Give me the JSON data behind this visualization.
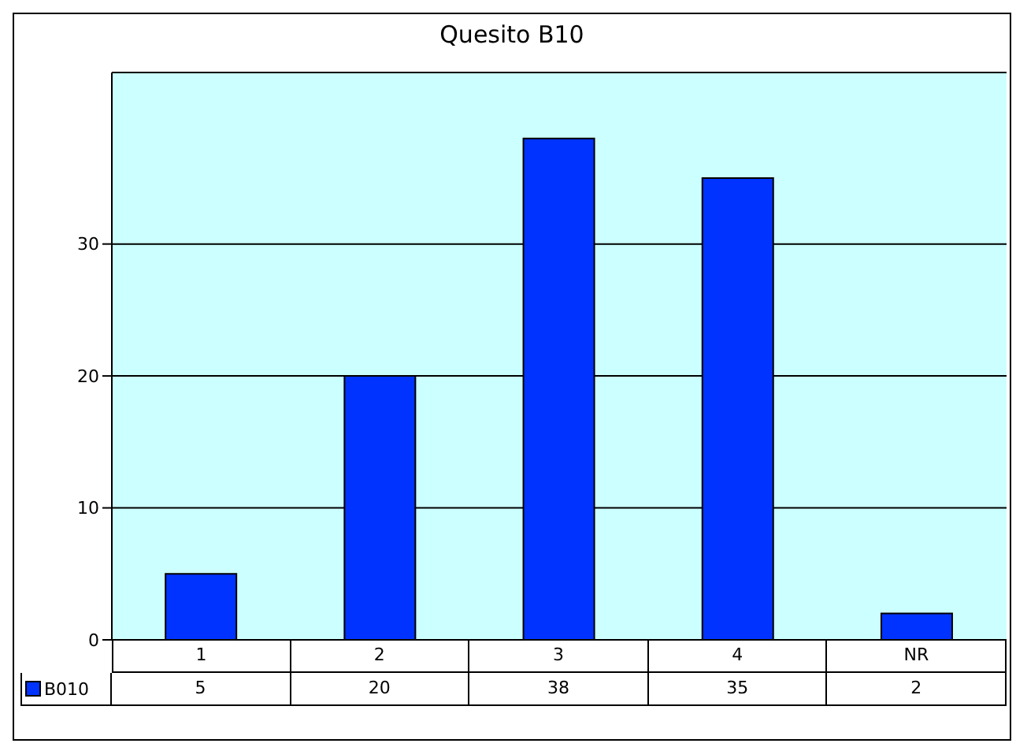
{
  "chart_data": {
    "type": "bar",
    "title": "Quesito B10",
    "categories": [
      "1",
      "2",
      "3",
      "4",
      "NR"
    ],
    "series": [
      {
        "name": "B010",
        "color": "#0033ff",
        "values": [
          5,
          20,
          38,
          35,
          2
        ]
      }
    ],
    "ylim": [
      0,
      43
    ],
    "yticks": [
      0,
      10,
      20,
      30
    ],
    "grid": "y",
    "data_labels": true
  }
}
